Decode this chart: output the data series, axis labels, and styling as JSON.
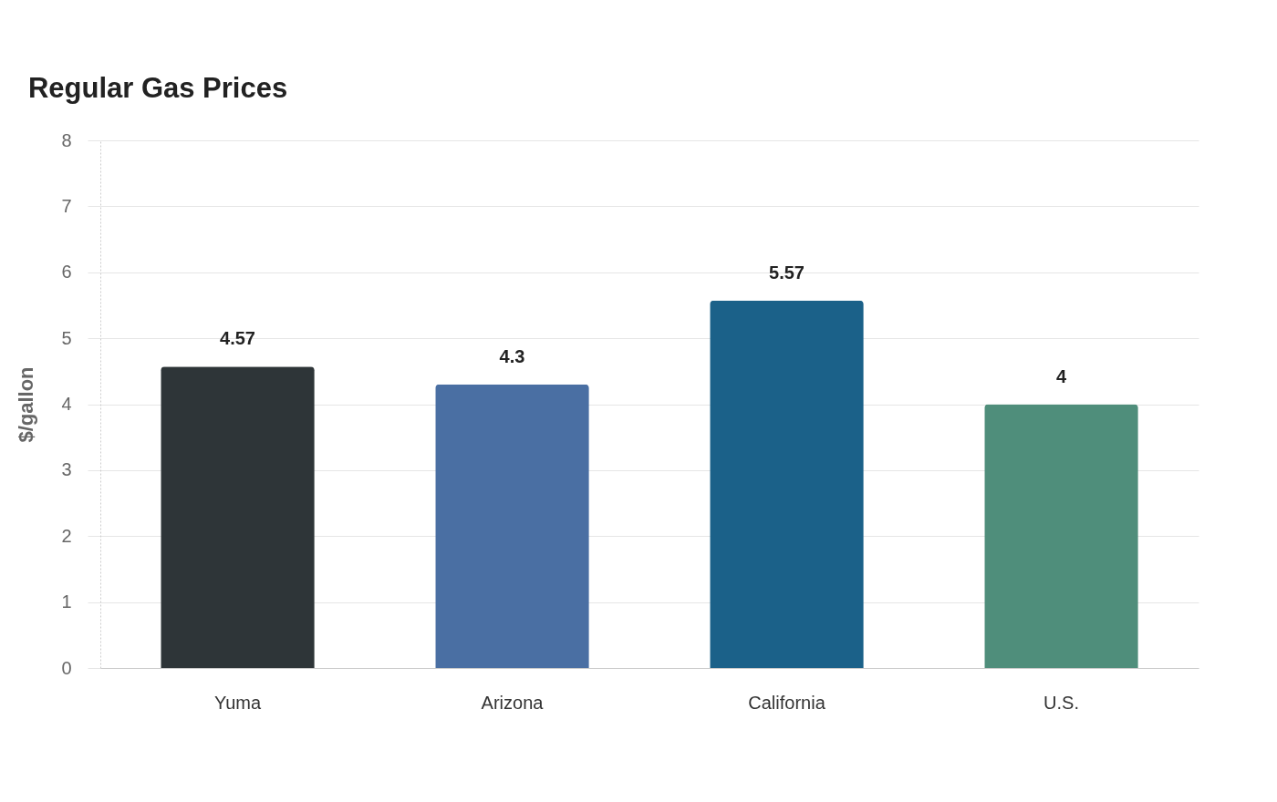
{
  "chart_data": {
    "type": "bar",
    "title": "Regular Gas Prices",
    "ylabel": "$/gallon",
    "categories": [
      "Yuma",
      "Arizona",
      "California",
      "U.S."
    ],
    "values": [
      4.57,
      4.3,
      5.57,
      4
    ],
    "colors": [
      "#2e3538",
      "#4a6fa3",
      "#1b6189",
      "#4f8e7b"
    ],
    "ylim": [
      0,
      8
    ],
    "yticks": [
      0,
      1,
      2,
      3,
      4,
      5,
      6,
      7,
      8
    ],
    "grid": true,
    "data_labels": true
  }
}
